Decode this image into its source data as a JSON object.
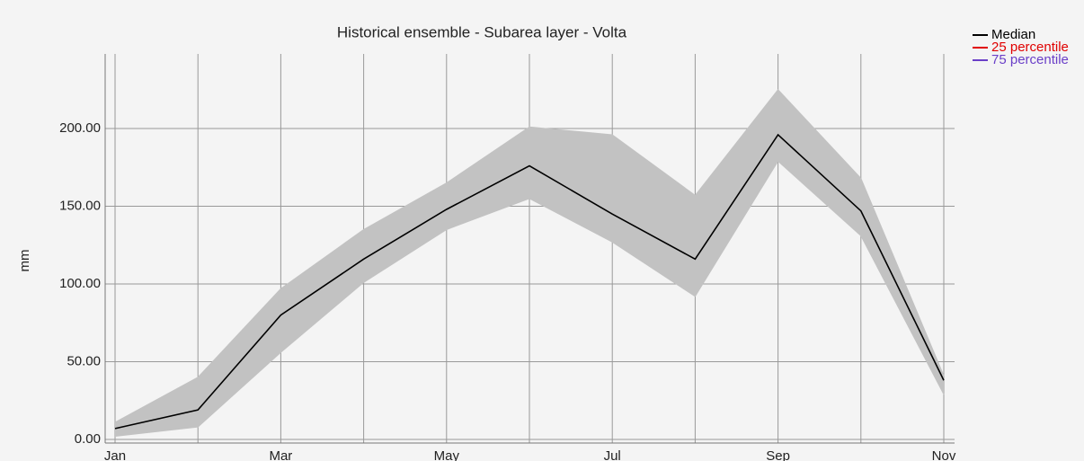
{
  "chart_data": {
    "type": "line",
    "title": "Historical ensemble - Subarea layer - Volta",
    "ylabel": "mm",
    "categories": [
      "Jan",
      null,
      "Mar",
      null,
      "May",
      null,
      "Jul",
      null,
      "Sep",
      null,
      "Nov"
    ],
    "series": [
      {
        "name": "Median",
        "color": "#000000",
        "values": [
          7,
          19,
          80,
          116,
          148,
          176,
          145,
          116,
          196,
          147,
          38
        ]
      },
      {
        "name": "25 percentile",
        "color": "#e00000",
        "values": [
          2,
          8,
          56,
          101,
          135,
          155,
          127,
          92,
          179,
          131,
          29
        ]
      },
      {
        "name": "75 percentile",
        "color": "#6a3fc8",
        "values": [
          11,
          40,
          97,
          135,
          165,
          201,
          196,
          157,
          225,
          168,
          41
        ]
      }
    ],
    "band_color": "#c2c2c2",
    "ylim": [
      0,
      248
    ],
    "yticks": [
      {
        "value": 0,
        "label": "0.00"
      },
      {
        "value": 50,
        "label": "50.00"
      },
      {
        "value": 100,
        "label": "100.00"
      },
      {
        "value": 150,
        "label": "150.00"
      },
      {
        "value": 200,
        "label": "200.00"
      }
    ],
    "grid": true,
    "legend": "top-right"
  }
}
